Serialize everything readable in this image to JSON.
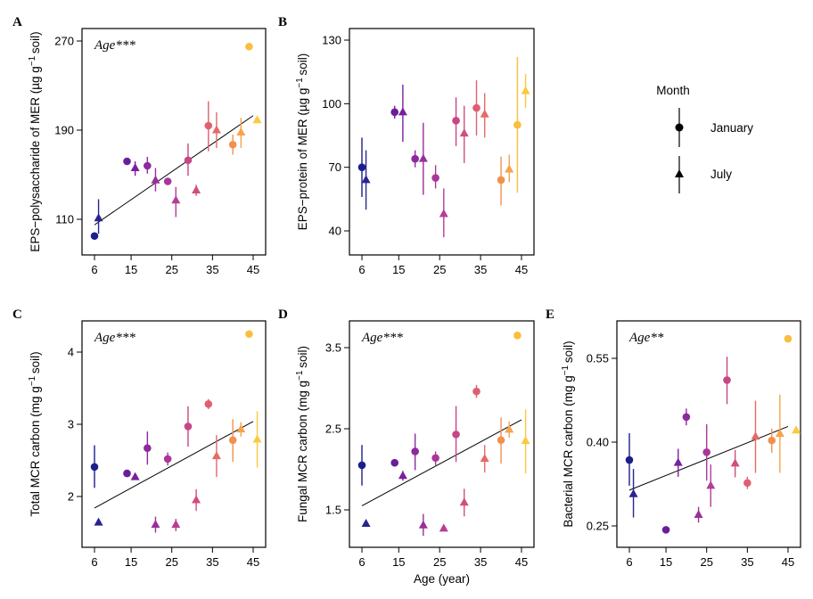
{
  "chart_data": [
    {
      "type": "scatter",
      "letter": "A",
      "ylabel_main": "EPS−polysaccharide of MER (µg g",
      "ylabel_sup": "−1",
      "ylabel_end": "soil)",
      "xlabel": "",
      "annotation": "Age***",
      "yticks": [
        "110",
        "190",
        "270"
      ],
      "xticks": [
        "6",
        "15",
        "25",
        "35",
        "45"
      ],
      "xlim": [
        3,
        48
      ],
      "ylim": [
        95,
        277
      ],
      "fit": [
        [
          6,
          105
        ],
        [
          45,
          203
        ]
      ],
      "points": [
        {
          "x": 6,
          "y": 95,
          "lo": 95,
          "hi": 95,
          "m": "January",
          "c": "#1b1f8a"
        },
        {
          "x": 7,
          "y": 111,
          "lo": 97,
          "hi": 128,
          "m": "July",
          "c": "#2a2490"
        },
        {
          "x": 14,
          "y": 162,
          "lo": 162,
          "hi": 162,
          "m": "January",
          "c": "#6a1d9a"
        },
        {
          "x": 16,
          "y": 156,
          "lo": 149,
          "hi": 162,
          "m": "July",
          "c": "#7a1f9c"
        },
        {
          "x": 19,
          "y": 158,
          "lo": 151,
          "hi": 166,
          "m": "January",
          "c": "#8c2a9d"
        },
        {
          "x": 21,
          "y": 145,
          "lo": 135,
          "hi": 156,
          "m": "July",
          "c": "#98309a"
        },
        {
          "x": 24,
          "y": 144,
          "lo": 141,
          "hi": 147,
          "m": "January",
          "c": "#a8379a"
        },
        {
          "x": 26,
          "y": 127,
          "lo": 112,
          "hi": 139,
          "m": "July",
          "c": "#b63d97"
        },
        {
          "x": 29,
          "y": 163,
          "lo": 149,
          "hi": 178,
          "m": "January",
          "c": "#c64686"
        },
        {
          "x": 31,
          "y": 136,
          "lo": 131,
          "hi": 141,
          "m": "July",
          "c": "#cf4e80"
        },
        {
          "x": 34,
          "y": 194,
          "lo": 171,
          "hi": 216,
          "m": "January",
          "c": "#de6070"
        },
        {
          "x": 36,
          "y": 190,
          "lo": 174,
          "hi": 206,
          "m": "July",
          "c": "#e56a68"
        },
        {
          "x": 40,
          "y": 177,
          "lo": 168,
          "hi": 186,
          "m": "January",
          "c": "#f2914e"
        },
        {
          "x": 42,
          "y": 188,
          "lo": 174,
          "hi": 201,
          "m": "July",
          "c": "#f6a34a"
        },
        {
          "x": 44,
          "y": 265,
          "lo": 265,
          "hi": 265,
          "m": "January",
          "c": "#f9be3c"
        },
        {
          "x": 46,
          "y": 199,
          "lo": 199,
          "hi": 199,
          "m": "July",
          "c": "#fbc93e"
        }
      ]
    },
    {
      "type": "scatter",
      "letter": "B",
      "ylabel_main": "EPS−protein of MER (µg g",
      "ylabel_sup": "−1",
      "ylabel_end": "soil)",
      "xlabel": "",
      "annotation": "",
      "yticks": [
        "40",
        "70",
        "100",
        "130"
      ],
      "xticks": [
        "6",
        "15",
        "25",
        "35",
        "45"
      ],
      "xlim": [
        3,
        48
      ],
      "ylim": [
        36,
        131
      ],
      "fit": null,
      "points": [
        {
          "x": 6,
          "y": 70,
          "lo": 56,
          "hi": 84,
          "m": "January",
          "c": "#1b1f8a"
        },
        {
          "x": 7,
          "y": 64,
          "lo": 50,
          "hi": 78,
          "m": "July",
          "c": "#2a2490"
        },
        {
          "x": 14,
          "y": 96,
          "lo": 93,
          "hi": 99,
          "m": "January",
          "c": "#6a1d9a"
        },
        {
          "x": 16,
          "y": 96,
          "lo": 82,
          "hi": 109,
          "m": "July",
          "c": "#7a1f9c"
        },
        {
          "x": 19,
          "y": 74,
          "lo": 70,
          "hi": 78,
          "m": "January",
          "c": "#8c2a9d"
        },
        {
          "x": 21,
          "y": 74,
          "lo": 57,
          "hi": 91,
          "m": "July",
          "c": "#98309a"
        },
        {
          "x": 24,
          "y": 65,
          "lo": 60,
          "hi": 71,
          "m": "January",
          "c": "#a8379a"
        },
        {
          "x": 26,
          "y": 48,
          "lo": 37,
          "hi": 60,
          "m": "July",
          "c": "#b63d97"
        },
        {
          "x": 29,
          "y": 92,
          "lo": 80,
          "hi": 103,
          "m": "January",
          "c": "#c64686"
        },
        {
          "x": 31,
          "y": 86,
          "lo": 72,
          "hi": 99,
          "m": "July",
          "c": "#cf4e80"
        },
        {
          "x": 34,
          "y": 98,
          "lo": 85,
          "hi": 111,
          "m": "January",
          "c": "#de6070"
        },
        {
          "x": 36,
          "y": 95,
          "lo": 84,
          "hi": 105,
          "m": "July",
          "c": "#e56a68"
        },
        {
          "x": 40,
          "y": 64,
          "lo": 52,
          "hi": 75,
          "m": "January",
          "c": "#f2914e"
        },
        {
          "x": 42,
          "y": 69,
          "lo": 63,
          "hi": 76,
          "m": "July",
          "c": "#f6a34a"
        },
        {
          "x": 44,
          "y": 90,
          "lo": 58,
          "hi": 122,
          "m": "January",
          "c": "#f9be3c"
        },
        {
          "x": 46,
          "y": 106,
          "lo": 98,
          "hi": 114,
          "m": "July",
          "c": "#fbc93e"
        }
      ]
    },
    {
      "type": "scatter",
      "letter": "C",
      "ylabel_main": "Total MCR carbon (mg g",
      "ylabel_sup": "−1",
      "ylabel_end": "soil)",
      "xlabel": "",
      "annotation": "Age***",
      "yticks": [
        "2",
        "3",
        "4"
      ],
      "xticks": [
        "6",
        "15",
        "25",
        "35",
        "45"
      ],
      "xlim": [
        3,
        48
      ],
      "ylim": [
        1.55,
        4.35
      ],
      "fit": [
        [
          6,
          1.84
        ],
        [
          45,
          3.04
        ]
      ],
      "points": [
        {
          "x": 6,
          "y": 2.41,
          "lo": 2.12,
          "hi": 2.71,
          "m": "January",
          "c": "#1b1f8a"
        },
        {
          "x": 7,
          "y": 1.64,
          "lo": 1.64,
          "hi": 1.64,
          "m": "July",
          "c": "#2a2490"
        },
        {
          "x": 14,
          "y": 2.32,
          "lo": 2.29,
          "hi": 2.35,
          "m": "January",
          "c": "#6a1d9a"
        },
        {
          "x": 16,
          "y": 2.27,
          "lo": 2.24,
          "hi": 2.3,
          "m": "July",
          "c": "#7a1f9c"
        },
        {
          "x": 19,
          "y": 2.67,
          "lo": 2.44,
          "hi": 2.9,
          "m": "January",
          "c": "#8c2a9d"
        },
        {
          "x": 21,
          "y": 1.61,
          "lo": 1.5,
          "hi": 1.72,
          "m": "July",
          "c": "#98309a"
        },
        {
          "x": 24,
          "y": 2.52,
          "lo": 2.43,
          "hi": 2.61,
          "m": "January",
          "c": "#a8379a"
        },
        {
          "x": 26,
          "y": 1.61,
          "lo": 1.52,
          "hi": 1.69,
          "m": "July",
          "c": "#b63d97"
        },
        {
          "x": 29,
          "y": 2.97,
          "lo": 2.69,
          "hi": 3.25,
          "m": "January",
          "c": "#c64686"
        },
        {
          "x": 31,
          "y": 1.95,
          "lo": 1.8,
          "hi": 2.1,
          "m": "July",
          "c": "#cf4e80"
        },
        {
          "x": 34,
          "y": 3.28,
          "lo": 3.21,
          "hi": 3.35,
          "m": "January",
          "c": "#de6070"
        },
        {
          "x": 36,
          "y": 2.56,
          "lo": 2.27,
          "hi": 2.85,
          "m": "July",
          "c": "#e56a68"
        },
        {
          "x": 40,
          "y": 2.78,
          "lo": 2.48,
          "hi": 3.07,
          "m": "January",
          "c": "#f2914e"
        },
        {
          "x": 42,
          "y": 2.93,
          "lo": 2.83,
          "hi": 3.03,
          "m": "July",
          "c": "#f6a34a"
        },
        {
          "x": 44,
          "y": 4.25,
          "lo": 4.25,
          "hi": 4.25,
          "m": "January",
          "c": "#f9be3c"
        },
        {
          "x": 46,
          "y": 2.79,
          "lo": 2.4,
          "hi": 3.18,
          "m": "July",
          "c": "#fbc93e"
        }
      ]
    },
    {
      "type": "scatter",
      "letter": "D",
      "ylabel_main": "Fungal MCR carbon (mg g",
      "ylabel_sup": "−1",
      "ylabel_end": "soil)",
      "xlabel": "Age (year)",
      "annotation": "Age***",
      "yticks": [
        "1.5",
        "2.5",
        "3.5"
      ],
      "xticks": [
        "6",
        "15",
        "25",
        "35",
        "45"
      ],
      "xlim": [
        3,
        48
      ],
      "ylim": [
        1.2,
        3.7
      ],
      "fit": [
        [
          6,
          1.55
        ],
        [
          45,
          2.61
        ]
      ],
      "points": [
        {
          "x": 6,
          "y": 2.05,
          "lo": 1.8,
          "hi": 2.3,
          "m": "January",
          "c": "#1b1f8a"
        },
        {
          "x": 7,
          "y": 1.33,
          "lo": 1.33,
          "hi": 1.33,
          "m": "July",
          "c": "#2a2490"
        },
        {
          "x": 14,
          "y": 2.08,
          "lo": 2.08,
          "hi": 2.08,
          "m": "January",
          "c": "#6a1d9a"
        },
        {
          "x": 16,
          "y": 1.92,
          "lo": 1.86,
          "hi": 1.98,
          "m": "July",
          "c": "#7a1f9c"
        },
        {
          "x": 19,
          "y": 2.22,
          "lo": 1.99,
          "hi": 2.44,
          "m": "January",
          "c": "#8c2a9d"
        },
        {
          "x": 21,
          "y": 1.31,
          "lo": 1.18,
          "hi": 1.45,
          "m": "July",
          "c": "#98309a"
        },
        {
          "x": 24,
          "y": 2.14,
          "lo": 2.05,
          "hi": 2.22,
          "m": "January",
          "c": "#a8379a"
        },
        {
          "x": 26,
          "y": 1.27,
          "lo": 1.27,
          "hi": 1.27,
          "m": "July",
          "c": "#b63d97"
        },
        {
          "x": 29,
          "y": 2.43,
          "lo": 2.09,
          "hi": 2.78,
          "m": "January",
          "c": "#c64686"
        },
        {
          "x": 31,
          "y": 1.59,
          "lo": 1.42,
          "hi": 1.76,
          "m": "July",
          "c": "#cf4e80"
        },
        {
          "x": 34,
          "y": 2.96,
          "lo": 2.88,
          "hi": 3.04,
          "m": "January",
          "c": "#de6070"
        },
        {
          "x": 36,
          "y": 2.13,
          "lo": 1.96,
          "hi": 2.3,
          "m": "July",
          "c": "#e56a68"
        },
        {
          "x": 40,
          "y": 2.36,
          "lo": 2.07,
          "hi": 2.64,
          "m": "January",
          "c": "#f2914e"
        },
        {
          "x": 42,
          "y": 2.49,
          "lo": 2.39,
          "hi": 2.59,
          "m": "July",
          "c": "#f6a34a"
        },
        {
          "x": 44,
          "y": 3.65,
          "lo": 3.65,
          "hi": 3.65,
          "m": "January",
          "c": "#f9be3c"
        },
        {
          "x": 46,
          "y": 2.35,
          "lo": 1.95,
          "hi": 2.74,
          "m": "July",
          "c": "#fbc93e"
        }
      ]
    },
    {
      "type": "scatter",
      "letter": "E",
      "ylabel_main": "Bacterial MCR carbon (mg g",
      "ylabel_sup": "−1",
      "ylabel_end": "soil)",
      "xlabel": "",
      "annotation": "Age**",
      "yticks": [
        "0.25",
        "0.40",
        "0.55"
      ],
      "xticks": [
        "6",
        "15",
        "25",
        "35",
        "45"
      ],
      "xlim": [
        3,
        48
      ],
      "ylim": [
        0.22,
        0.6
      ],
      "fit": [
        [
          6,
          0.314
        ],
        [
          45,
          0.428
        ]
      ],
      "points": [
        {
          "x": 6,
          "y": 0.368,
          "lo": 0.322,
          "hi": 0.416,
          "m": "January",
          "c": "#1b1f8a"
        },
        {
          "x": 7,
          "y": 0.307,
          "lo": 0.265,
          "hi": 0.352,
          "m": "July",
          "c": "#2a2490"
        },
        {
          "x": 15,
          "y": 0.243,
          "lo": 0.243,
          "hi": 0.243,
          "m": "January",
          "c": "#6a1d9a"
        },
        {
          "x": 18,
          "y": 0.363,
          "lo": 0.338,
          "hi": 0.388,
          "m": "July",
          "c": "#7a1f9c"
        },
        {
          "x": 20,
          "y": 0.445,
          "lo": 0.43,
          "hi": 0.46,
          "m": "January",
          "c": "#8c2a9d"
        },
        {
          "x": 23,
          "y": 0.27,
          "lo": 0.256,
          "hi": 0.284,
          "m": "July",
          "c": "#98309a"
        },
        {
          "x": 25,
          "y": 0.382,
          "lo": 0.331,
          "hi": 0.432,
          "m": "January",
          "c": "#a8379a"
        },
        {
          "x": 26,
          "y": 0.322,
          "lo": 0.284,
          "hi": 0.36,
          "m": "July",
          "c": "#b63d97"
        },
        {
          "x": 30,
          "y": 0.511,
          "lo": 0.468,
          "hi": 0.553,
          "m": "January",
          "c": "#c64686"
        },
        {
          "x": 32,
          "y": 0.362,
          "lo": 0.337,
          "hi": 0.386,
          "m": "July",
          "c": "#cf4e80"
        },
        {
          "x": 35,
          "y": 0.327,
          "lo": 0.316,
          "hi": 0.338,
          "m": "January",
          "c": "#de6070"
        },
        {
          "x": 37,
          "y": 0.41,
          "lo": 0.345,
          "hi": 0.474,
          "m": "July",
          "c": "#e56a68"
        },
        {
          "x": 41,
          "y": 0.403,
          "lo": 0.381,
          "hi": 0.424,
          "m": "January",
          "c": "#f2914e"
        },
        {
          "x": 43,
          "y": 0.415,
          "lo": 0.345,
          "hi": 0.485,
          "m": "July",
          "c": "#f6a34a"
        },
        {
          "x": 45,
          "y": 0.585,
          "lo": 0.585,
          "hi": 0.585,
          "m": "January",
          "c": "#f9be3c"
        },
        {
          "x": 47,
          "y": 0.421,
          "lo": 0.421,
          "hi": 0.421,
          "m": "July",
          "c": "#fbc93e"
        }
      ]
    }
  ],
  "legend": {
    "title": "Month",
    "items": [
      {
        "label": "January",
        "shape": "circle"
      },
      {
        "label": "July",
        "shape": "triangle"
      }
    ]
  }
}
